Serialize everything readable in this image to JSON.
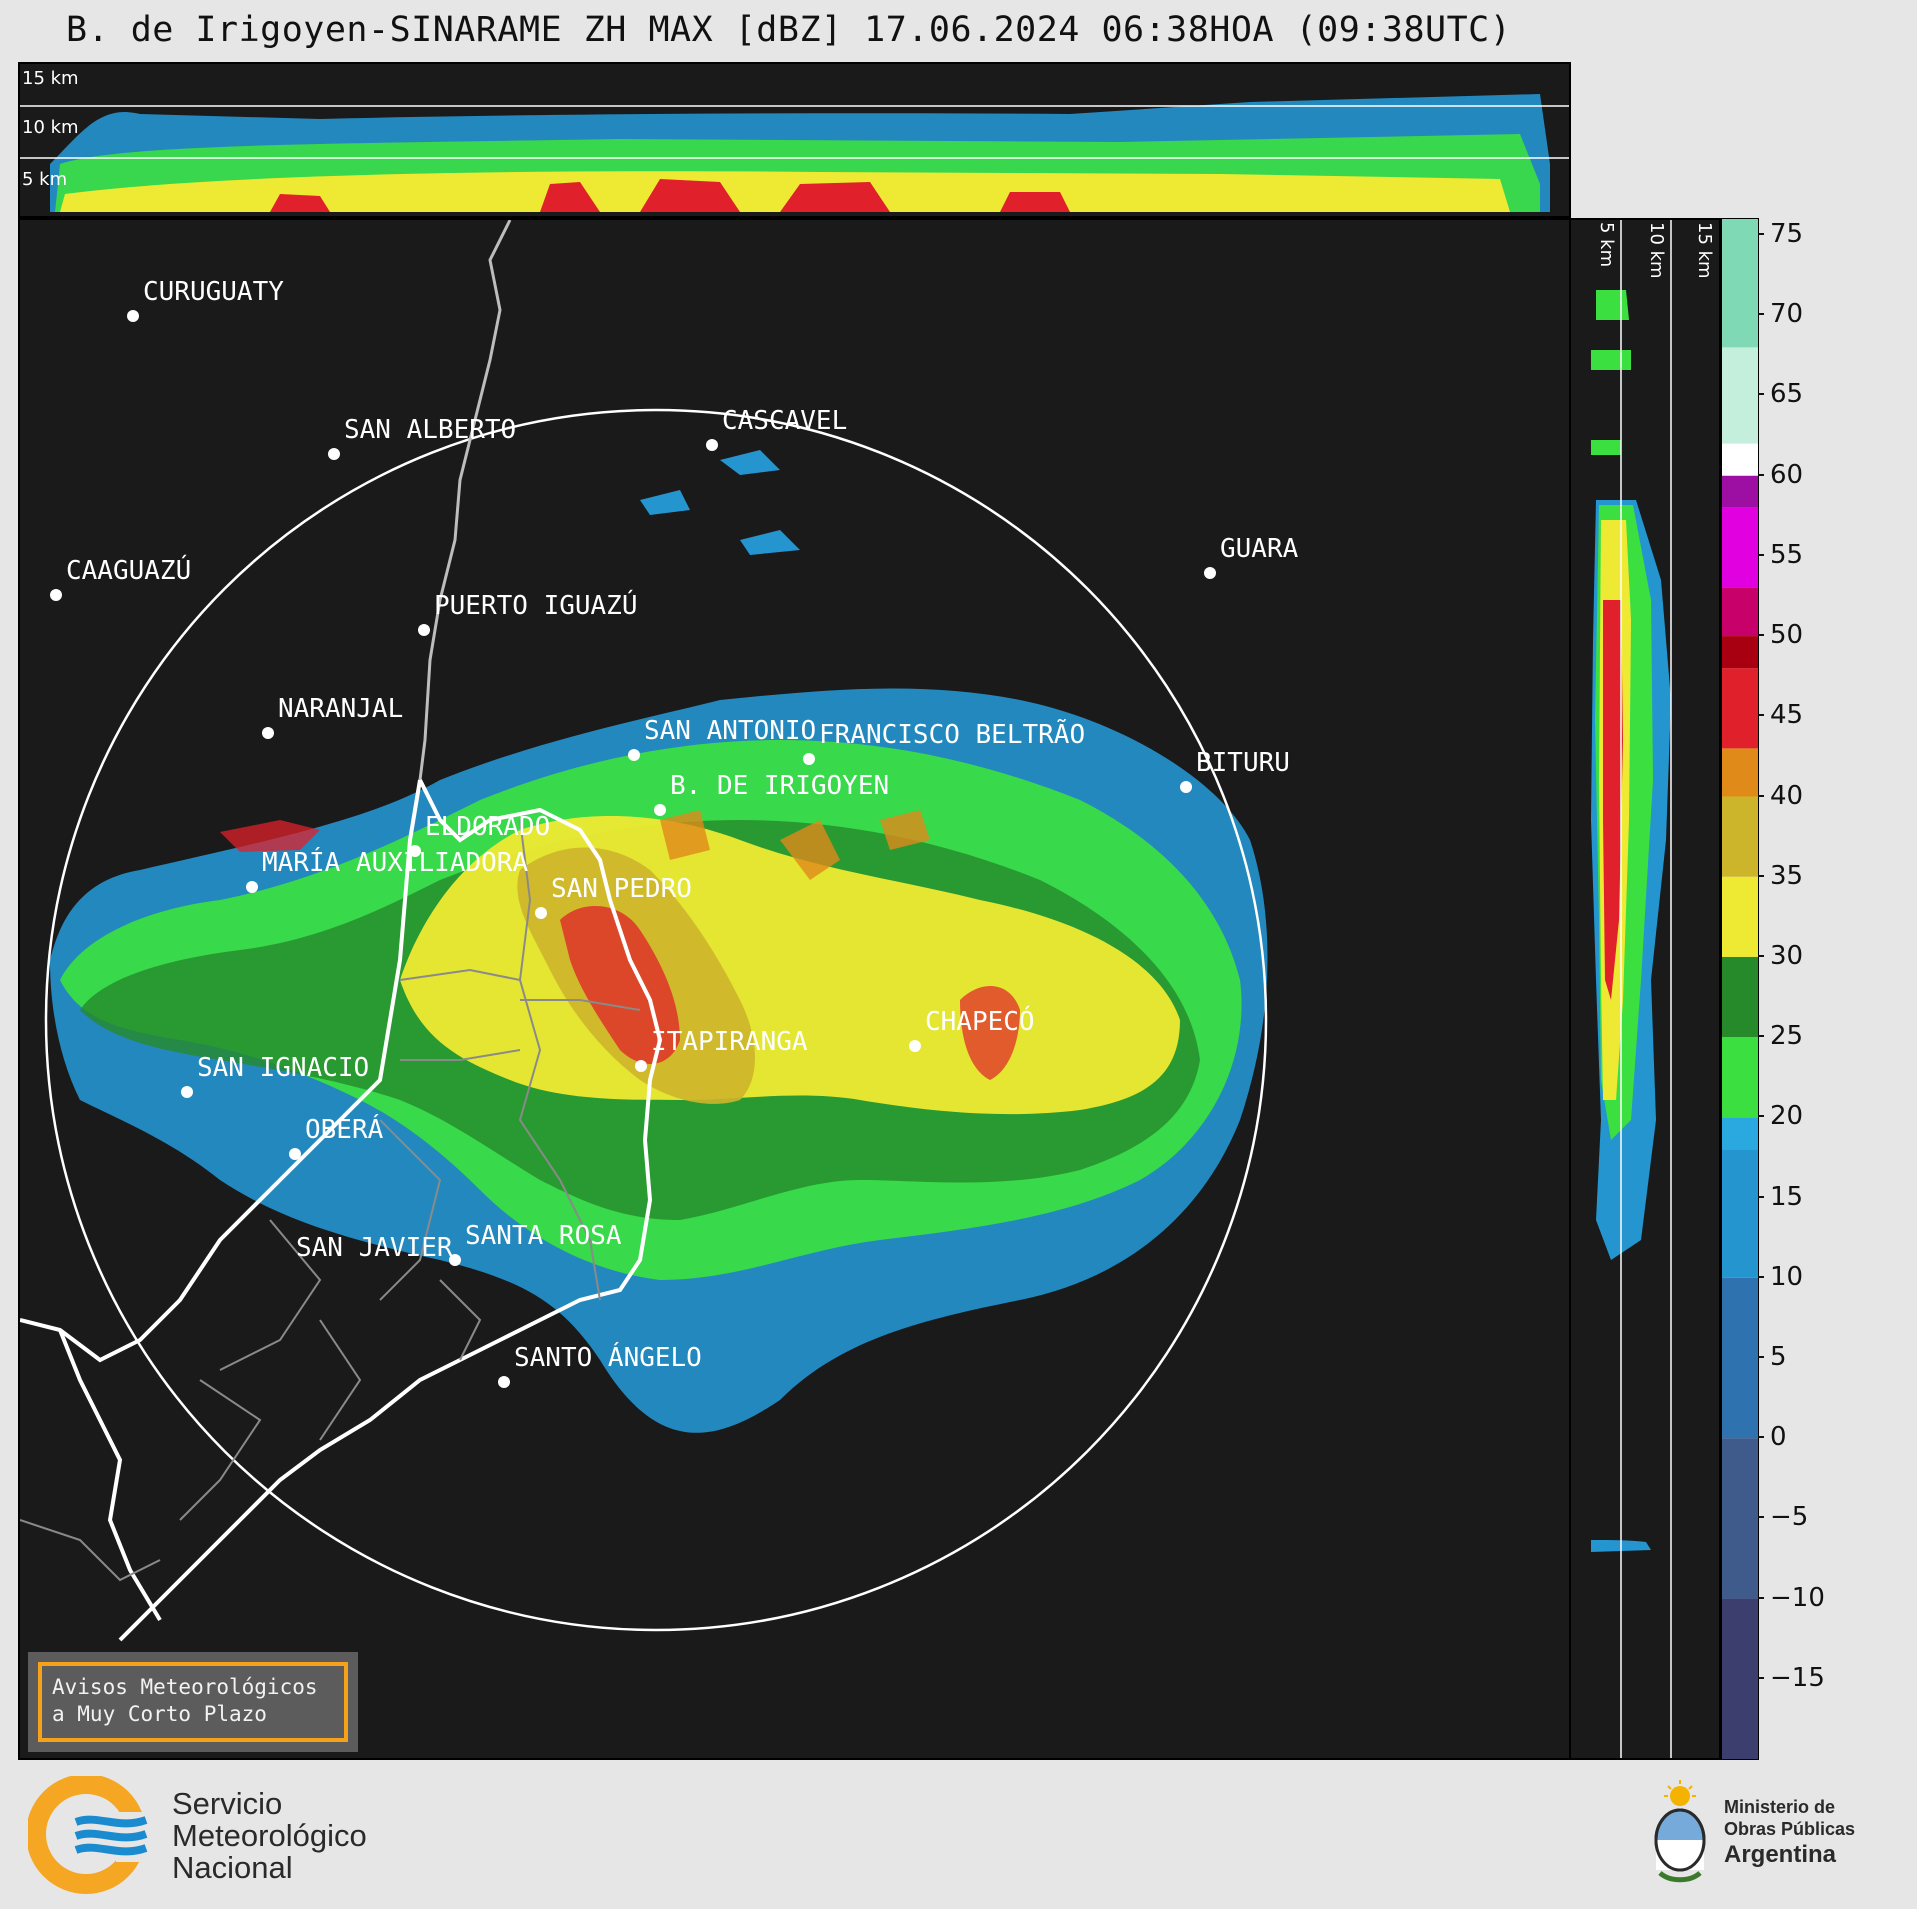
{
  "title": "B. de Irigoyen-SINARAME ZH MAX [dBZ] 17.06.2024 06:38HOA (09:38UTC)",
  "top_panel": {
    "height_labels": [
      "15 km",
      "10 km",
      "5 km"
    ]
  },
  "side_panel": {
    "height_labels": [
      "5 km",
      "10 km",
      "15 km"
    ]
  },
  "colorbar": {
    "unit": "dBZ",
    "min": -20,
    "max": 76,
    "ticks": [
      "75",
      "70",
      "65",
      "60",
      "55",
      "50",
      "45",
      "40",
      "35",
      "30",
      "25",
      "20",
      "15",
      "10",
      "5",
      "0",
      "−5",
      "−10",
      "−15"
    ],
    "tick_values": [
      75,
      70,
      65,
      60,
      55,
      50,
      45,
      40,
      35,
      30,
      25,
      20,
      15,
      10,
      5,
      0,
      -5,
      -10,
      -15
    ],
    "stops": [
      {
        "from": -20,
        "to": -10,
        "color": "#3c3f6e"
      },
      {
        "from": -10,
        "to": 0,
        "color": "#3e5b8c"
      },
      {
        "from": 0,
        "to": 10,
        "color": "#2f72b0"
      },
      {
        "from": 10,
        "to": 18,
        "color": "#2595d0"
      },
      {
        "from": 18,
        "to": 20,
        "color": "#2aa9e0"
      },
      {
        "from": 20,
        "to": 25,
        "color": "#3be040"
      },
      {
        "from": 25,
        "to": 30,
        "color": "#268a2a"
      },
      {
        "from": 30,
        "to": 35,
        "color": "#eeea33"
      },
      {
        "from": 35,
        "to": 40,
        "color": "#cdb52b"
      },
      {
        "from": 40,
        "to": 43,
        "color": "#e08a1a"
      },
      {
        "from": 43,
        "to": 48,
        "color": "#e0202a"
      },
      {
        "from": 48,
        "to": 50,
        "color": "#a80010"
      },
      {
        "from": 50,
        "to": 53,
        "color": "#c8006a"
      },
      {
        "from": 53,
        "to": 58,
        "color": "#e000e0"
      },
      {
        "from": 58,
        "to": 60,
        "color": "#9d0fa3"
      },
      {
        "from": 60,
        "to": 62,
        "color": "#ffffff"
      },
      {
        "from": 62,
        "to": 68,
        "color": "#c4efdc"
      },
      {
        "from": 68,
        "to": 76,
        "color": "#7ed9b4"
      }
    ]
  },
  "cities": [
    {
      "name": "CURUGUATY"
    },
    {
      "name": "SAN ALBERTO"
    },
    {
      "name": "CASCAVEL"
    },
    {
      "name": "GUARA"
    },
    {
      "name": "CAAGUAZÚ"
    },
    {
      "name": "PUERTO IGUAZÚ"
    },
    {
      "name": "NARANJAL"
    },
    {
      "name": "SAN ANTONIO"
    },
    {
      "name": "FRANCISCO BELTRÃO"
    },
    {
      "name": "BITURU"
    },
    {
      "name": "B. DE IRIGOYEN"
    },
    {
      "name": "ELDORADO"
    },
    {
      "name": "MARÍA AUXILIADORA"
    },
    {
      "name": "SAN PEDRO"
    },
    {
      "name": "ITAPIRANGA"
    },
    {
      "name": "CHAPECÓ"
    },
    {
      "name": "SAN IGNACIO"
    },
    {
      "name": "OBERÁ"
    },
    {
      "name": "SAN JAVIER"
    },
    {
      "name": "SANTA ROSA"
    },
    {
      "name": "SANTO ÁNGELO"
    }
  ],
  "badge": {
    "line1": "Avisos Meteorológicos",
    "line2": "a Muy Corto Plazo"
  },
  "footer": {
    "smn_line1": "Servicio",
    "smn_line2": "Meteorológico",
    "smn_line3": "Nacional",
    "ministry_line1": "Ministerio de",
    "ministry_line2": "Obras Públicas",
    "ministry_line3": "Argentina"
  },
  "colors": {
    "background": "#1a1a1a",
    "border": "#ffffff",
    "accent": "#f5a21a",
    "smn_orange": "#f5a623",
    "smn_blue": "#1b8bd0"
  }
}
